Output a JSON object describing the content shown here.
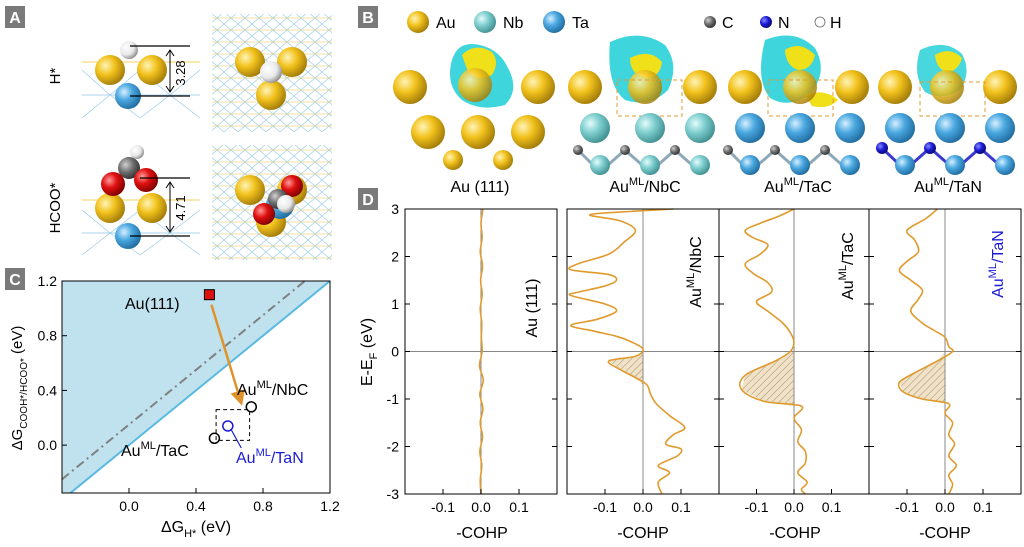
{
  "panels": {
    "A": {
      "letter": "A",
      "row1_label": "H*",
      "row1_distance": "3.28",
      "row2_label": "HCOO*",
      "row2_distance": "4.71"
    },
    "B": {
      "letter": "B",
      "legend": [
        {
          "symbol": "Au",
          "color": "#f2c21c"
        },
        {
          "symbol": "Nb",
          "color": "#7fcfd0"
        },
        {
          "symbol": "Ta",
          "color": "#4aa8e0"
        },
        {
          "symbol": "C",
          "color": "#808080"
        },
        {
          "symbol": "N",
          "color": "#1a1ad6"
        },
        {
          "symbol": "H",
          "color": "#ffffff"
        }
      ],
      "structures": [
        {
          "label": "Au (111)"
        },
        {
          "label_main": "Au",
          "label_sup": "ML",
          "label_rest": "/NbC"
        },
        {
          "label_main": "Au",
          "label_sup": "ML",
          "label_rest": "/TaC"
        },
        {
          "label_main": "Au",
          "label_sup": "ML",
          "label_rest": "/TaN"
        }
      ]
    },
    "C": {
      "letter": "C",
      "xlabel_main": "ΔG",
      "xlabel_sub": "H*",
      "xlabel_unit": " (eV)",
      "ylabel_main": "ΔG",
      "ylabel_sub": "COOH*/HCOO*",
      "ylabel_unit": " (eV)",
      "annotations": {
        "au111": "Au(111)",
        "nbc_main": "Au",
        "nbc_sup": "ML",
        "nbc_rest": "/NbC",
        "tac_main": "Au",
        "tac_sup": "ML",
        "tac_rest": "/TaC",
        "tan_main": "Au",
        "tan_sup": "ML",
        "tan_rest": "/TaN"
      }
    },
    "D": {
      "letter": "D",
      "ylabel_main": "E-E",
      "ylabel_sub": "F",
      "ylabel_unit": " (eV)",
      "xlabel": "-COHP",
      "subpanels": [
        {
          "main": "Au (111)",
          "sup": "",
          "rest": ""
        },
        {
          "main": "Au",
          "sup": "ML",
          "rest": "/NbC"
        },
        {
          "main": "Au",
          "sup": "ML",
          "rest": "/TaC"
        },
        {
          "main": "Au",
          "sup": "ML",
          "rest": "/TaN"
        }
      ]
    }
  },
  "colors": {
    "panel_letter_bg": "#7a7a7a",
    "cohp_line": "#e09a2e",
    "tan_label": "#1a1ad6",
    "region_fill": "#bfe2ee",
    "diag_line": "#5ab9e0",
    "marker_red": "#dd1111",
    "arrow": "#e0922a"
  },
  "chart_data": [
    {
      "type": "scatter",
      "title": "",
      "xlabel": "ΔG_H* (eV)",
      "ylabel": "ΔG_COOH*/HCOO* (eV)",
      "xlim": [
        -0.4,
        1.2
      ],
      "ylim": [
        -0.35,
        1.2
      ],
      "xticks": [
        0.0,
        0.4,
        0.8,
        1.2
      ],
      "yticks": [
        0.0,
        0.4,
        0.8,
        1.2
      ],
      "points": [
        {
          "name": "Au(111)",
          "x": 0.48,
          "y": 1.1,
          "marker": "filled-square"
        },
        {
          "name": "AuML/NbC",
          "x": 0.73,
          "y": 0.28,
          "marker": "open-circle"
        },
        {
          "name": "AuML/TaC",
          "x": 0.51,
          "y": 0.05,
          "marker": "open-circle"
        },
        {
          "name": "AuML/TaN",
          "x": 0.59,
          "y": 0.14,
          "marker": "open-circle"
        }
      ],
      "lines": [
        {
          "name": "dash-dot",
          "style": "dash-dot",
          "y_equals_x_plus": 0.15
        },
        {
          "name": "boundary",
          "style": "solid",
          "y_equals_x_plus": 0.0
        }
      ]
    },
    {
      "type": "line",
      "title": "COHP",
      "xlabel": "-COHP",
      "ylabel": "E-E_F (eV)",
      "ylim": [
        -3,
        3
      ],
      "yticks": [
        -3,
        -2,
        -1,
        0,
        1,
        2,
        3
      ],
      "xticks": [
        -0.1,
        0.0,
        0.1
      ],
      "series": [
        {
          "name": "Au (111)",
          "xlim": [
            -0.2,
            0.2
          ],
          "points": [
            [
              0.005,
              3
            ],
            [
              0,
              2.7
            ],
            [
              0.003,
              2.4
            ],
            [
              -0.002,
              2.1
            ],
            [
              0.004,
              1.8
            ],
            [
              -0.001,
              1.5
            ],
            [
              0.003,
              1.2
            ],
            [
              -0.002,
              0.9
            ],
            [
              0.002,
              0.6
            ],
            [
              0.001,
              0.3
            ],
            [
              0.003,
              0
            ],
            [
              -0.004,
              -0.3
            ],
            [
              0.006,
              -0.6
            ],
            [
              -0.003,
              -0.9
            ],
            [
              0.005,
              -1.2
            ],
            [
              -0.002,
              -1.5
            ],
            [
              0.004,
              -1.8
            ],
            [
              -0.003,
              -2.1
            ],
            [
              0.002,
              -2.4
            ],
            [
              -0.002,
              -2.7
            ],
            [
              0,
              -3
            ]
          ]
        },
        {
          "name": "AuML/NbC",
          "xlim": [
            -0.2,
            0.2
          ],
          "points": [
            [
              0.08,
              3
            ],
            [
              -0.03,
              2.95
            ],
            [
              -0.14,
              2.88
            ],
            [
              -0.06,
              2.75
            ],
            [
              -0.02,
              2.55
            ],
            [
              -0.05,
              2.3
            ],
            [
              -0.09,
              2.05
            ],
            [
              -0.17,
              1.85
            ],
            [
              -0.19,
              1.72
            ],
            [
              -0.09,
              1.62
            ],
            [
              -0.07,
              1.5
            ],
            [
              -0.1,
              1.38
            ],
            [
              -0.17,
              1.25
            ],
            [
              -0.19,
              1.18
            ],
            [
              -0.1,
              1.0
            ],
            [
              -0.07,
              0.85
            ],
            [
              -0.12,
              0.68
            ],
            [
              -0.19,
              0.55
            ],
            [
              -0.13,
              0.43
            ],
            [
              -0.07,
              0.32
            ],
            [
              -0.03,
              0.2
            ],
            [
              0,
              0.05
            ],
            [
              -0.02,
              -0.1
            ],
            [
              -0.09,
              -0.2
            ],
            [
              -0.06,
              -0.38
            ],
            [
              -0.02,
              -0.55
            ],
            [
              0.01,
              -0.7
            ],
            [
              0.02,
              -0.9
            ],
            [
              0.035,
              -1.1
            ],
            [
              0.07,
              -1.35
            ],
            [
              0.11,
              -1.6
            ],
            [
              0.08,
              -1.75
            ],
            [
              0.06,
              -1.95
            ],
            [
              0.1,
              -2.05
            ],
            [
              0.09,
              -2.2
            ],
            [
              0.04,
              -2.4
            ],
            [
              0.07,
              -2.55
            ],
            [
              0.04,
              -2.75
            ],
            [
              0.05,
              -3
            ]
          ]
        },
        {
          "name": "AuML/TaC",
          "xlim": [
            -0.2,
            0.2
          ],
          "points": [
            [
              0,
              3
            ],
            [
              -0.04,
              2.85
            ],
            [
              -0.09,
              2.7
            ],
            [
              -0.13,
              2.55
            ],
            [
              -0.11,
              2.4
            ],
            [
              -0.07,
              2.25
            ],
            [
              -0.09,
              2.05
            ],
            [
              -0.13,
              1.85
            ],
            [
              -0.11,
              1.65
            ],
            [
              -0.07,
              1.45
            ],
            [
              -0.06,
              1.25
            ],
            [
              -0.1,
              1.05
            ],
            [
              -0.07,
              0.85
            ],
            [
              -0.03,
              0.6
            ],
            [
              -0.01,
              0.4
            ],
            [
              0,
              0.2
            ],
            [
              -0.01,
              0
            ],
            [
              -0.05,
              -0.2
            ],
            [
              -0.13,
              -0.5
            ],
            [
              -0.14,
              -0.8
            ],
            [
              -0.08,
              -1.05
            ],
            [
              0.02,
              -1.15
            ],
            [
              0,
              -1.4
            ],
            [
              0.02,
              -1.65
            ],
            [
              0.01,
              -1.9
            ],
            [
              0.03,
              -2.1
            ],
            [
              0.03,
              -2.35
            ],
            [
              0.01,
              -2.55
            ],
            [
              0.035,
              -2.75
            ],
            [
              0.02,
              -2.9
            ],
            [
              0.03,
              -3
            ]
          ]
        },
        {
          "name": "AuML/TaN",
          "xlim": [
            -0.2,
            0.2
          ],
          "points": [
            [
              -0.02,
              3
            ],
            [
              -0.05,
              2.8
            ],
            [
              -0.1,
              2.55
            ],
            [
              -0.08,
              2.35
            ],
            [
              -0.07,
              2.1
            ],
            [
              -0.1,
              1.9
            ],
            [
              -0.12,
              1.7
            ],
            [
              -0.09,
              1.5
            ],
            [
              -0.06,
              1.3
            ],
            [
              -0.07,
              1.1
            ],
            [
              -0.09,
              0.85
            ],
            [
              -0.06,
              0.6
            ],
            [
              -0.03,
              0.45
            ],
            [
              0,
              0.3
            ],
            [
              0.01,
              0.1
            ],
            [
              0.02,
              0
            ],
            [
              -0.02,
              -0.2
            ],
            [
              -0.08,
              -0.45
            ],
            [
              -0.12,
              -0.65
            ],
            [
              -0.11,
              -0.85
            ],
            [
              -0.06,
              -1.0
            ],
            [
              0.01,
              -1.1
            ],
            [
              0,
              -1.3
            ],
            [
              0.02,
              -1.5
            ],
            [
              0.01,
              -1.75
            ],
            [
              0.025,
              -1.95
            ],
            [
              0.01,
              -2.2
            ],
            [
              0.03,
              -2.4
            ],
            [
              0.01,
              -2.6
            ],
            [
              0.02,
              -2.8
            ],
            [
              0.01,
              -3
            ]
          ]
        }
      ]
    }
  ]
}
